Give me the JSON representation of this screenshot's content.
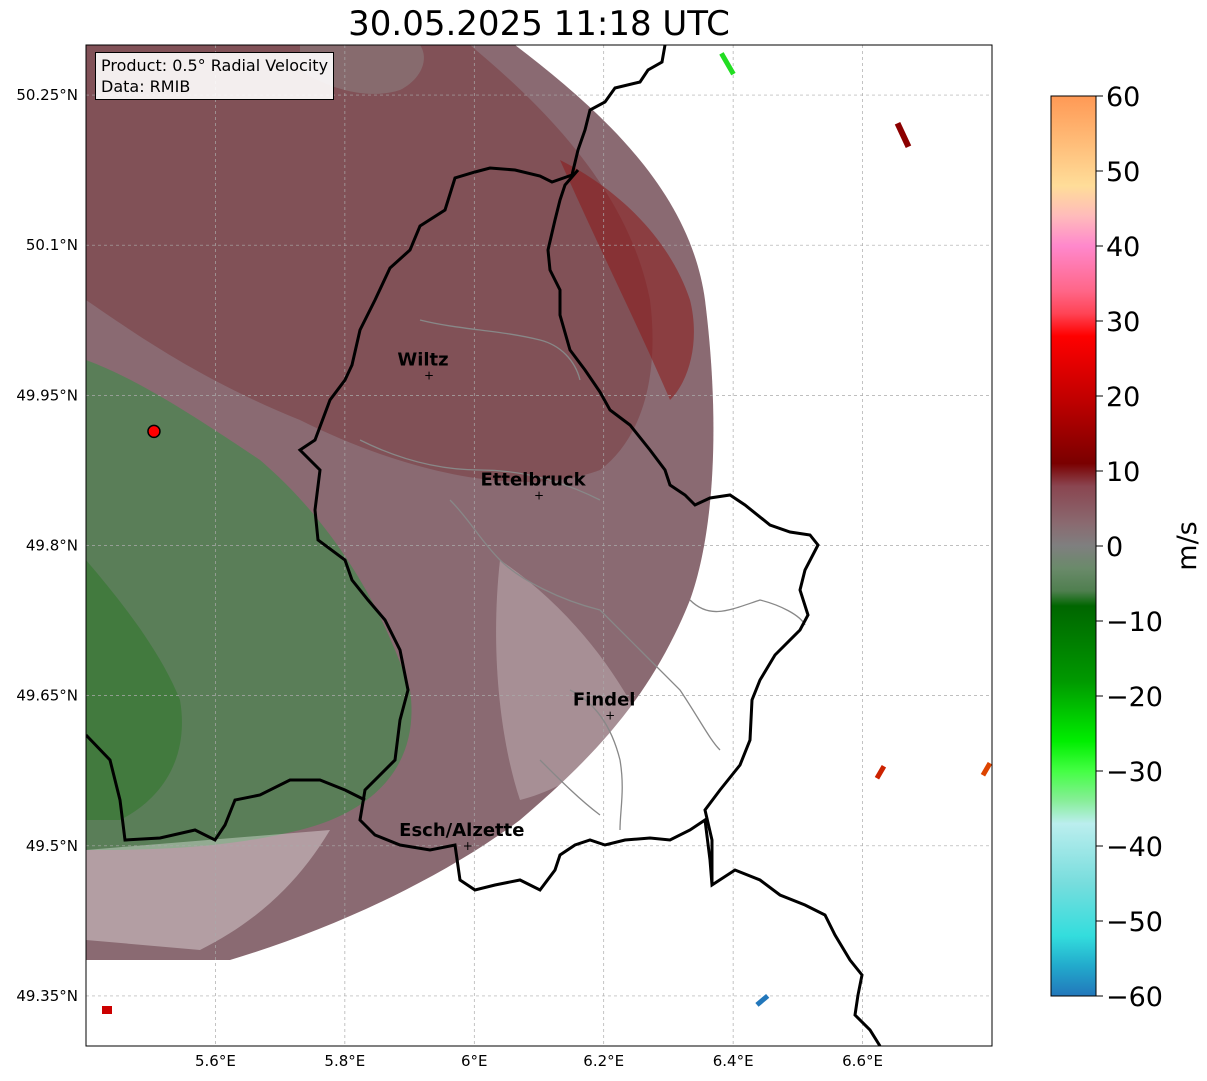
{
  "title": "30.05.2025 11:18 UTC",
  "info": {
    "product": "Product: 0.5° Radial Velocity",
    "data": "Data: RMIB"
  },
  "map": {
    "lat_ticks": [
      {
        "value": 50.25,
        "label": "50.25°N"
      },
      {
        "value": 50.1,
        "label": "50.1°N"
      },
      {
        "value": 49.95,
        "label": "49.95°N"
      },
      {
        "value": 49.8,
        "label": "49.8°N"
      },
      {
        "value": 49.65,
        "label": "49.65°N"
      },
      {
        "value": 49.5,
        "label": "49.5°N"
      },
      {
        "value": 49.35,
        "label": "49.35°N"
      }
    ],
    "lon_ticks": [
      {
        "value": 5.6,
        "label": "5.6°E"
      },
      {
        "value": 5.8,
        "label": "5.8°E"
      },
      {
        "value": 6.0,
        "label": "6°E"
      },
      {
        "value": 6.2,
        "label": "6.2°E"
      },
      {
        "value": 6.4,
        "label": "6.4°E"
      },
      {
        "value": 6.6,
        "label": "6.6°E"
      }
    ],
    "cities": [
      {
        "name": "Wiltz",
        "lon": 5.93,
        "lat": 49.97
      },
      {
        "name": "Ettelbruck",
        "lon": 6.1,
        "lat": 49.85
      },
      {
        "name": "Findel",
        "lon": 6.21,
        "lat": 49.63
      },
      {
        "name": "Esch/Alzette",
        "lon": 5.99,
        "lat": 49.5
      }
    ],
    "radar_site": {
      "lon": 5.505,
      "lat": 49.914
    }
  },
  "colorbar": {
    "label": "m/s",
    "min": -60,
    "max": 60,
    "ticks": [
      {
        "value": 60,
        "label": "60"
      },
      {
        "value": 50,
        "label": "50"
      },
      {
        "value": 40,
        "label": "40"
      },
      {
        "value": 30,
        "label": "30"
      },
      {
        "value": 20,
        "label": "20"
      },
      {
        "value": 10,
        "label": "10"
      },
      {
        "value": 0,
        "label": "0"
      },
      {
        "value": -10,
        "label": "−10"
      },
      {
        "value": -20,
        "label": "−20"
      },
      {
        "value": -30,
        "label": "−30"
      },
      {
        "value": -40,
        "label": "−40"
      },
      {
        "value": -50,
        "label": "−50"
      },
      {
        "value": -60,
        "label": "−60"
      }
    ],
    "stops": [
      {
        "v": 60,
        "color": "#ff9955"
      },
      {
        "v": 54,
        "color": "#ffbb77"
      },
      {
        "v": 48,
        "color": "#ffdd99"
      },
      {
        "v": 44,
        "color": "#ffbbbb"
      },
      {
        "v": 40,
        "color": "#ff88cc"
      },
      {
        "v": 34,
        "color": "#ff6688"
      },
      {
        "v": 31,
        "color": "#ff4455"
      },
      {
        "v": 28,
        "color": "#ff0000"
      },
      {
        "v": 20,
        "color": "#c40000"
      },
      {
        "v": 11,
        "color": "#7a0000"
      },
      {
        "v": 8,
        "color": "#8a4550"
      },
      {
        "v": 3,
        "color": "#8a6a70"
      },
      {
        "v": 0,
        "color": "#7f7f7f"
      },
      {
        "v": -3,
        "color": "#6a8a6a"
      },
      {
        "v": -6,
        "color": "#4f7f4f"
      },
      {
        "v": -8,
        "color": "#006600"
      },
      {
        "v": -18,
        "color": "#009900"
      },
      {
        "v": -26,
        "color": "#00ee00"
      },
      {
        "v": -30,
        "color": "#44ff44"
      },
      {
        "v": -34,
        "color": "#88ee99"
      },
      {
        "v": -37,
        "color": "#bbeeee"
      },
      {
        "v": -45,
        "color": "#77dddd"
      },
      {
        "v": -52,
        "color": "#33dddd"
      },
      {
        "v": -56,
        "color": "#22aacc"
      },
      {
        "v": -60,
        "color": "#2277bb"
      }
    ]
  }
}
